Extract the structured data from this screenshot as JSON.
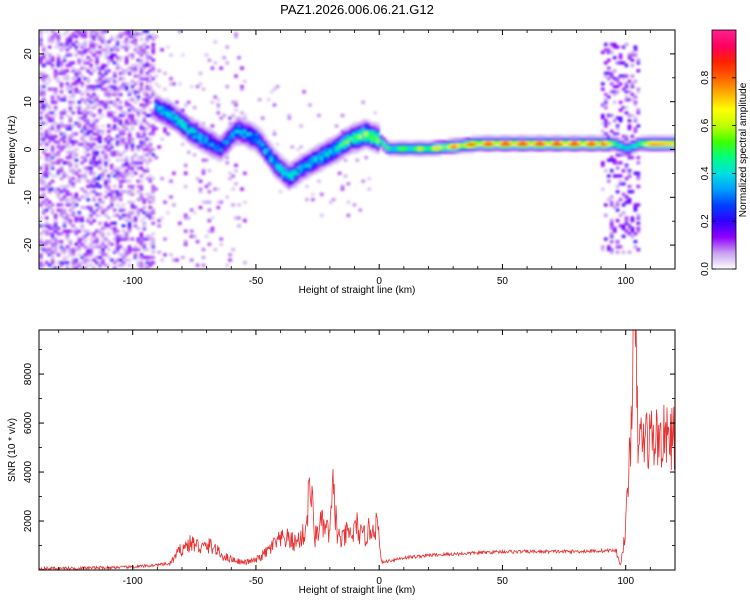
{
  "title": "PAZ1.2026.006.06.21.G12",
  "colors": {
    "snr_line": "#e83030",
    "colorbar": [
      "#ffffff",
      "#c8a0f0",
      "#9000ff",
      "#3000ff",
      "#0040ff",
      "#00a0ff",
      "#00e0e0",
      "#00ff80",
      "#40ff00",
      "#c0ff00",
      "#ffff00",
      "#ffb000",
      "#ff6000",
      "#ff2000",
      "#ff0060",
      "#ff2090"
    ]
  },
  "chart_data": [
    {
      "type": "heatmap",
      "title": "PAZ1.2026.006.06.21.G12",
      "xlabel": "Height of straight line (km)",
      "ylabel": "Frequency (Hz)",
      "xlim": [
        -138,
        120
      ],
      "ylim": [
        -25,
        25
      ],
      "xticks": [
        -100,
        -50,
        0,
        50,
        100
      ],
      "yticks": [
        -20,
        -10,
        0,
        10,
        20
      ],
      "colorbar": {
        "label": "Normalized spectral amplitude",
        "range": [
          0,
          1
        ],
        "ticks": [
          "0.0",
          "0.2",
          "0.4",
          "0.6",
          "0.8"
        ],
        "tick_values": [
          0,
          0.2,
          0.4,
          0.6,
          0.8
        ]
      },
      "ridge": {
        "x": [
          -93,
          -85,
          -78,
          -72,
          -65,
          -58,
          -50,
          -43,
          -37,
          -32,
          -25,
          -18,
          -12,
          -6,
          -1,
          3,
          10,
          20,
          30,
          40,
          50,
          60,
          70,
          80,
          90,
          95,
          100,
          105,
          110,
          120
        ],
        "y": [
          9,
          7,
          4,
          2,
          0,
          4,
          2,
          -3,
          -6,
          -4,
          -2,
          0,
          2,
          3,
          2,
          0,
          0,
          0,
          0.5,
          1,
          1,
          1,
          1,
          1,
          1,
          1,
          0,
          1,
          1,
          1
        ],
        "amp": [
          0.35,
          0.4,
          0.4,
          0.35,
          0.3,
          0.35,
          0.35,
          0.4,
          0.4,
          0.35,
          0.4,
          0.45,
          0.5,
          0.6,
          0.55,
          0.55,
          0.6,
          0.7,
          0.85,
          0.9,
          0.95,
          0.95,
          0.95,
          0.95,
          0.9,
          0.5,
          0.4,
          0.5,
          0.8,
          0.7
        ]
      }
    },
    {
      "type": "line",
      "xlabel": "Height of straight line (km)",
      "ylabel": "SNR (10 * v/v)",
      "xlim": [
        -138,
        120
      ],
      "ylim": [
        0,
        9800
      ],
      "xticks": [
        -100,
        -50,
        0,
        50,
        100
      ],
      "yticks": [
        2000,
        4000,
        6000,
        8000
      ],
      "series": [
        {
          "name": "SNR",
          "x": [
            -138,
            -120,
            -100,
            -85,
            -80,
            -76,
            -72,
            -68,
            -64,
            -60,
            -55,
            -50,
            -46,
            -42,
            -38,
            -34,
            -30,
            -28,
            -26,
            -24,
            -22,
            -20,
            -18.5,
            -17,
            -15,
            -13,
            -11,
            -9,
            -7,
            -5,
            -3,
            -1,
            0,
            1,
            5,
            10,
            20,
            30,
            40,
            50,
            60,
            70,
            80,
            90,
            96,
            98,
            100,
            101,
            102,
            103,
            104,
            104.5,
            105,
            106,
            108,
            112,
            116,
            120
          ],
          "y": [
            60,
            80,
            120,
            250,
            900,
            1100,
            900,
            1000,
            600,
            450,
            300,
            400,
            700,
            1100,
            1300,
            1100,
            1500,
            3600,
            1300,
            1900,
            1700,
            1500,
            3500,
            1400,
            1200,
            1500,
            1400,
            1800,
            1300,
            1500,
            1700,
            1900,
            1200,
            300,
            400,
            500,
            600,
            650,
            700,
            750,
            750,
            750,
            760,
            780,
            800,
            200,
            1700,
            3500,
            5600,
            9400,
            9600,
            6800,
            5500,
            5300,
            5400,
            5400,
            5400,
            5400
          ]
        }
      ]
    }
  ]
}
